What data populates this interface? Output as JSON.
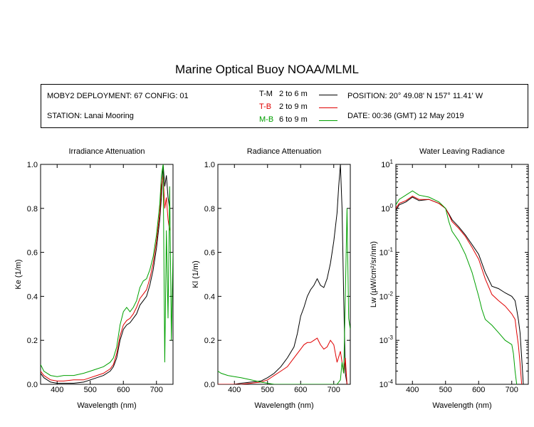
{
  "title": "Marine Optical Buoy NOAA/MLML",
  "info": {
    "deployment": "MOBY2 DEPLOYMENT: 67 CONFIG: 01",
    "station": "STATION: Lanai Mooring",
    "position": "POSITION: 20° 49.08' N   157° 11.41' W",
    "date": "DATE: 00:36 (GMT) 12 May 2019"
  },
  "legend": [
    {
      "name": "T-M",
      "range": "2 to 6  m",
      "color": "#000000"
    },
    {
      "name": "T-B",
      "range": "2 to 9  m",
      "color": "#e00000"
    },
    {
      "name": "M-B",
      "range": "6 to 9  m",
      "color": "#00a000"
    }
  ],
  "chart_data": [
    {
      "type": "line",
      "title": "Irradiance Attenuation",
      "xlabel": "Wavelength (nm)",
      "ylabel": "Ke  (1/m)",
      "xlim": [
        350,
        750
      ],
      "ylim": [
        0,
        1.0
      ],
      "xticks": [
        400,
        500,
        600,
        700
      ],
      "yticks": [
        0.0,
        0.2,
        0.4,
        0.6,
        0.8,
        1.0
      ],
      "yticklabels": [
        "0.0",
        "0.2",
        "0.4",
        "0.6",
        "0.8",
        "1.0"
      ],
      "series": [
        {
          "name": "T-M",
          "color": "#000000",
          "x": [
            350,
            360,
            380,
            400,
            420,
            450,
            480,
            500,
            520,
            540,
            560,
            570,
            580,
            590,
            600,
            610,
            620,
            630,
            640,
            650,
            660,
            670,
            680,
            690,
            700,
            710,
            715,
            720,
            725,
            730,
            735,
            740
          ],
          "y": [
            0.05,
            0.03,
            0.01,
            0.005,
            0.005,
            0.005,
            0.01,
            0.02,
            0.03,
            0.04,
            0.06,
            0.08,
            0.12,
            0.2,
            0.25,
            0.27,
            0.28,
            0.3,
            0.32,
            0.36,
            0.38,
            0.4,
            0.45,
            0.52,
            0.62,
            0.75,
            0.85,
            1.0,
            0.9,
            0.95,
            0.85,
            0.8
          ]
        },
        {
          "name": "T-B",
          "color": "#e00000",
          "x": [
            350,
            360,
            380,
            400,
            420,
            450,
            480,
            500,
            520,
            540,
            560,
            570,
            580,
            590,
            600,
            610,
            620,
            630,
            640,
            650,
            660,
            670,
            680,
            690,
            700,
            710,
            715,
            720,
            725,
            730,
            735,
            740
          ],
          "y": [
            0.06,
            0.04,
            0.02,
            0.015,
            0.015,
            0.02,
            0.02,
            0.03,
            0.04,
            0.05,
            0.07,
            0.09,
            0.14,
            0.22,
            0.27,
            0.29,
            0.3,
            0.32,
            0.35,
            0.39,
            0.41,
            0.43,
            0.48,
            0.55,
            0.65,
            0.78,
            0.9,
            0.95,
            0.8,
            0.85,
            0.75,
            0.7
          ]
        },
        {
          "name": "M-B",
          "color": "#00a000",
          "x": [
            350,
            360,
            380,
            400,
            420,
            450,
            480,
            500,
            520,
            540,
            560,
            570,
            580,
            590,
            600,
            610,
            620,
            630,
            640,
            650,
            660,
            670,
            680,
            690,
            700,
            710,
            715,
            720,
            725,
            730,
            735,
            740,
            745,
            750
          ],
          "y": [
            0.09,
            0.06,
            0.04,
            0.035,
            0.04,
            0.04,
            0.05,
            0.06,
            0.07,
            0.08,
            0.1,
            0.12,
            0.17,
            0.27,
            0.33,
            0.35,
            0.33,
            0.35,
            0.38,
            0.44,
            0.47,
            0.48,
            0.52,
            0.58,
            0.68,
            0.82,
            0.95,
            1.0,
            0.1,
            0.7,
            0.3,
            0.9,
            0.2,
            0.6
          ]
        }
      ]
    },
    {
      "type": "line",
      "title": "Radiance Attenuation",
      "xlabel": "Wavelength (nm)",
      "ylabel": "Kl  (1/m)",
      "xlim": [
        350,
        750
      ],
      "ylim": [
        0,
        1.0
      ],
      "xticks": [
        400,
        500,
        600,
        700
      ],
      "yticks": [
        0.0,
        0.2,
        0.4,
        0.6,
        0.8,
        1.0
      ],
      "yticklabels": [
        "0.0",
        "0.2",
        "0.4",
        "0.6",
        "0.8",
        "1.0"
      ],
      "series": [
        {
          "name": "T-M",
          "color": "#000000",
          "x": [
            350,
            380,
            400,
            420,
            450,
            480,
            500,
            520,
            540,
            560,
            580,
            590,
            600,
            610,
            620,
            630,
            640,
            650,
            660,
            670,
            680,
            690,
            700,
            710,
            715,
            720,
            725,
            730,
            735,
            740
          ],
          "y": [
            0.0,
            0.0,
            0.0,
            0.005,
            0.01,
            0.015,
            0.03,
            0.05,
            0.08,
            0.12,
            0.17,
            0.23,
            0.31,
            0.35,
            0.4,
            0.43,
            0.45,
            0.48,
            0.45,
            0.44,
            0.48,
            0.55,
            0.65,
            0.78,
            0.9,
            1.0,
            0.8,
            0.4,
            0.05,
            0.0
          ]
        },
        {
          "name": "T-B",
          "color": "#e00000",
          "x": [
            350,
            380,
            400,
            420,
            450,
            480,
            500,
            520,
            540,
            560,
            580,
            600,
            610,
            620,
            630,
            640,
            650,
            660,
            670,
            680,
            690,
            700,
            710,
            720,
            730,
            735,
            740
          ],
          "y": [
            0.0,
            0.0,
            0.0,
            0.0,
            0.005,
            0.01,
            0.02,
            0.04,
            0.06,
            0.08,
            0.12,
            0.16,
            0.18,
            0.19,
            0.19,
            0.2,
            0.21,
            0.18,
            0.16,
            0.17,
            0.2,
            0.18,
            0.1,
            0.15,
            0.05,
            0.12,
            0.0
          ]
        },
        {
          "name": "M-B",
          "color": "#00a000",
          "x": [
            350,
            360,
            380,
            400,
            420,
            450,
            480,
            500,
            520,
            540,
            560,
            580,
            600,
            620,
            640,
            660,
            680,
            700,
            710,
            720,
            725,
            730,
            735,
            740,
            745,
            750
          ],
          "y": [
            0.06,
            0.05,
            0.04,
            0.035,
            0.03,
            0.02,
            0.01,
            0.005,
            0.0,
            0.0,
            0.0,
            0.0,
            0.0,
            0.0,
            0.0,
            0.0,
            0.0,
            0.0,
            0.0,
            0.02,
            0.1,
            0.05,
            0.4,
            0.8,
            0.3,
            0.25
          ]
        }
      ]
    },
    {
      "type": "line",
      "title": "Water Leaving Radiance",
      "xlabel": "Wavelength (nm)",
      "ylabel": "Lw  (µW/cm²/sr/nm)",
      "yscale": "log",
      "xlim": [
        350,
        750
      ],
      "ylim": [
        0.0001,
        10
      ],
      "xticks": [
        400,
        500,
        600,
        700
      ],
      "yticks": [
        0.0001,
        0.001,
        0.01,
        0.1,
        1,
        10
      ],
      "yticklabels": [
        {
          "base": "10",
          "exp": "-4"
        },
        {
          "base": "10",
          "exp": "-3"
        },
        {
          "base": "10",
          "exp": "-2"
        },
        {
          "base": "10",
          "exp": "-1"
        },
        {
          "base": "10",
          "exp": "0"
        },
        {
          "base": "10",
          "exp": "1"
        }
      ],
      "series": [
        {
          "name": "T-M",
          "color": "#000000",
          "x": [
            350,
            360,
            380,
            400,
            420,
            450,
            480,
            500,
            510,
            520,
            540,
            560,
            580,
            600,
            620,
            640,
            660,
            680,
            700,
            710,
            715,
            720,
            725,
            730,
            735
          ],
          "y": [
            0.9,
            1.2,
            1.4,
            1.8,
            1.5,
            1.6,
            1.3,
            1.0,
            0.75,
            0.55,
            0.38,
            0.25,
            0.15,
            0.09,
            0.035,
            0.017,
            0.015,
            0.012,
            0.01,
            0.008,
            0.005,
            0.003,
            0.0015,
            0.0004,
            0.0001
          ]
        },
        {
          "name": "T-B",
          "color": "#e00000",
          "x": [
            350,
            360,
            380,
            400,
            420,
            450,
            480,
            500,
            510,
            520,
            540,
            560,
            580,
            600,
            620,
            640,
            660,
            680,
            700,
            710,
            715,
            720,
            725,
            730
          ],
          "y": [
            1.0,
            1.3,
            1.5,
            1.9,
            1.6,
            1.6,
            1.3,
            1.0,
            0.72,
            0.5,
            0.35,
            0.23,
            0.13,
            0.07,
            0.025,
            0.011,
            0.008,
            0.006,
            0.004,
            0.003,
            0.0015,
            0.0008,
            0.0003,
            0.0001
          ]
        },
        {
          "name": "M-B",
          "color": "#00a000",
          "x": [
            350,
            360,
            380,
            400,
            420,
            450,
            480,
            500,
            510,
            520,
            540,
            560,
            580,
            600,
            610,
            620,
            640,
            660,
            680,
            700,
            705,
            710,
            715
          ],
          "y": [
            1.2,
            1.6,
            2.0,
            2.5,
            2.0,
            1.8,
            1.4,
            1.0,
            0.5,
            0.3,
            0.18,
            0.09,
            0.035,
            0.01,
            0.005,
            0.003,
            0.0022,
            0.0015,
            0.001,
            0.0008,
            0.0005,
            0.0002,
            0.0001
          ]
        }
      ]
    }
  ]
}
